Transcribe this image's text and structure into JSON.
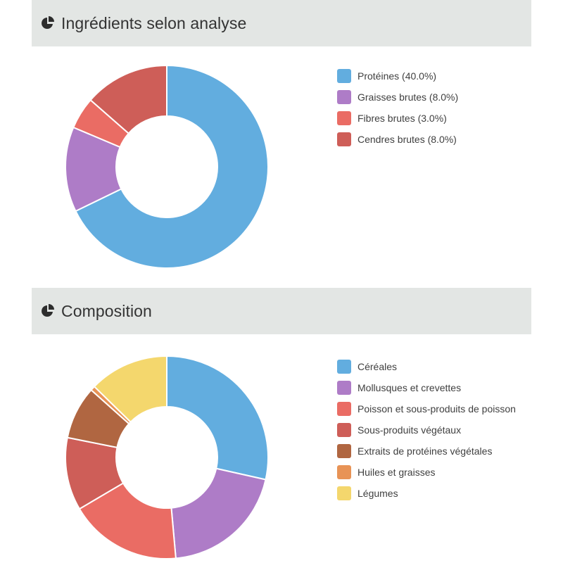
{
  "sections": {
    "analysis": {
      "title": "Ingrédients selon analyse",
      "icon": "pie-chart-icon"
    },
    "composition": {
      "title": "Composition",
      "icon": "pie-chart-icon"
    }
  },
  "chart_data": [
    {
      "type": "pie",
      "donut": true,
      "title": "Ingrédients selon analyse",
      "legend_position": "right",
      "categories": [
        "Protéines (40.0%)",
        "Graisses brutes (8.0%)",
        "Fibres brutes (3.0%)",
        "Cendres brutes (8.0%)"
      ],
      "values": [
        40.0,
        8.0,
        3.0,
        8.0
      ],
      "colors": [
        "#62addf",
        "#ae7cc7",
        "#ea6c64",
        "#ce5e58"
      ]
    },
    {
      "type": "pie",
      "donut": true,
      "title": "Composition",
      "legend_position": "right",
      "categories": [
        "Céréales",
        "Mollusques et crevettes",
        "Poisson et sous-produits de poisson",
        "Sous-produits végétaux",
        "Extraits de protéines végétales",
        "Huiles et graisses",
        "Légumes"
      ],
      "values": [
        27,
        19,
        17,
        11,
        8,
        0.7,
        12
      ],
      "colors": [
        "#62addf",
        "#ae7cc7",
        "#ea6c64",
        "#ce5e58",
        "#b06641",
        "#e89356",
        "#f4d76d"
      ]
    }
  ]
}
